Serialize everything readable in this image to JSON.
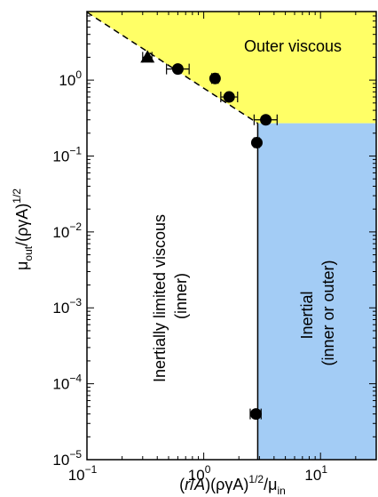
{
  "chart_data": {
    "type": "scatter",
    "title": "",
    "x_scale": "log",
    "y_scale": "log",
    "xlim": [
      0.1,
      30
    ],
    "ylim": [
      1e-05,
      8
    ],
    "x_ticks": [
      {
        "value": 0.1,
        "base": "10",
        "exp": "−1"
      },
      {
        "value": 1,
        "base": "10",
        "exp": "0"
      },
      {
        "value": 10,
        "base": "10",
        "exp": "1"
      }
    ],
    "y_ticks": [
      {
        "value": 1e-05,
        "base": "10",
        "exp": "−5"
      },
      {
        "value": 0.0001,
        "base": "10",
        "exp": "−4"
      },
      {
        "value": 0.001,
        "base": "10",
        "exp": "−3"
      },
      {
        "value": 0.01,
        "base": "10",
        "exp": "−2"
      },
      {
        "value": 0.1,
        "base": "10",
        "exp": "−1"
      },
      {
        "value": 1,
        "base": "10",
        "exp": "0"
      }
    ],
    "xlabel": {
      "p1": "(",
      "r": "r",
      "slash": "/",
      "A": "A",
      "p2": ")(ργA)",
      "half": "1/2",
      "slash2": "/μ",
      "sub": "in"
    },
    "ylabel": {
      "mu": "μ",
      "sub": "out",
      "mid": "/(ργA)",
      "half": "1/2"
    },
    "boundary": {
      "x_crit": 2.9,
      "y_crit": 0.27,
      "slope": -1
    },
    "regions": [
      {
        "name": "outer-viscous",
        "lines": [
          "Outer viscous"
        ],
        "color": "#ffff66"
      },
      {
        "name": "inertial",
        "lines": [
          "Inertial",
          "(inner or outer)"
        ],
        "color": "#a3ccf5"
      },
      {
        "name": "inertially-limited-viscous",
        "lines": [
          "Inertially limited viscous",
          "(inner)"
        ],
        "color": "#ffffff"
      }
    ],
    "series": [
      {
        "marker": "triangle",
        "points": [
          {
            "x": 0.33,
            "y": 2.0,
            "xerr": [
              0.3,
              0.36
            ]
          }
        ]
      },
      {
        "marker": "circle",
        "points": [
          {
            "x": 0.6,
            "y": 1.4,
            "xerr": [
              0.48,
              0.75
            ]
          },
          {
            "x": 1.25,
            "y": 1.05,
            "xerr": [
              1.17,
              1.33
            ]
          },
          {
            "x": 1.65,
            "y": 0.6,
            "xerr": [
              1.4,
              1.95
            ]
          },
          {
            "x": 3.4,
            "y": 0.3,
            "xerr": [
              2.7,
              4.25
            ]
          },
          {
            "x": 2.85,
            "y": 0.15,
            "xerr": [
              2.7,
              3.0
            ]
          },
          {
            "x": 2.8,
            "y": 4e-05,
            "xerr": [
              2.5,
              3.1
            ]
          }
        ]
      }
    ]
  }
}
